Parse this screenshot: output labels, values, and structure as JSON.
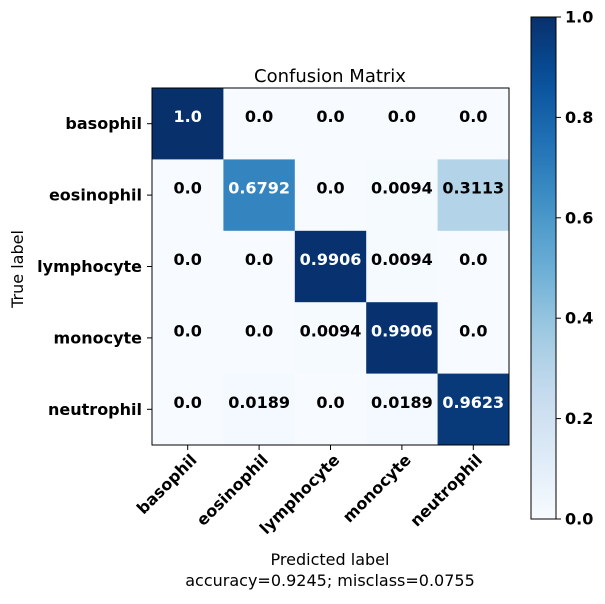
{
  "chart_data": {
    "type": "heatmap",
    "title": "Confusion Matrix",
    "xlabel": "Predicted label",
    "xlabel_sub": "accuracy=0.9245; misclass=0.0755",
    "ylabel": "True label",
    "row_labels": [
      "basophil",
      "eosinophil",
      "lymphocyte",
      "monocyte",
      "neutrophil"
    ],
    "col_labels": [
      "basophil",
      "eosinophil",
      "lymphocyte",
      "monocyte",
      "neutrophil"
    ],
    "cell_labels": [
      [
        "1.0",
        "0.0",
        "0.0",
        "0.0",
        "0.0"
      ],
      [
        "0.0",
        "0.6792",
        "0.0",
        "0.0094",
        "0.3113"
      ],
      [
        "0.0",
        "0.0",
        "0.9906",
        "0.0094",
        "0.0"
      ],
      [
        "0.0",
        "0.0",
        "0.0094",
        "0.9906",
        "0.0"
      ],
      [
        "0.0",
        "0.0189",
        "0.0",
        "0.0189",
        "0.9623"
      ]
    ],
    "values": [
      [
        1.0,
        0.0,
        0.0,
        0.0,
        0.0
      ],
      [
        0.0,
        0.6792,
        0.0,
        0.0094,
        0.3113
      ],
      [
        0.0,
        0.0,
        0.9906,
        0.0094,
        0.0
      ],
      [
        0.0,
        0.0,
        0.0094,
        0.9906,
        0.0
      ],
      [
        0.0,
        0.0189,
        0.0,
        0.0189,
        0.9623
      ]
    ],
    "colorbar": {
      "range": [
        0.0,
        1.0
      ],
      "ticks": [
        "0.0",
        "0.2",
        "0.4",
        "0.6",
        "0.8",
        "1.0"
      ],
      "colormap": "Blues",
      "color_low": "#f7fbff",
      "color_high": "#08306b"
    },
    "grid": false
  }
}
